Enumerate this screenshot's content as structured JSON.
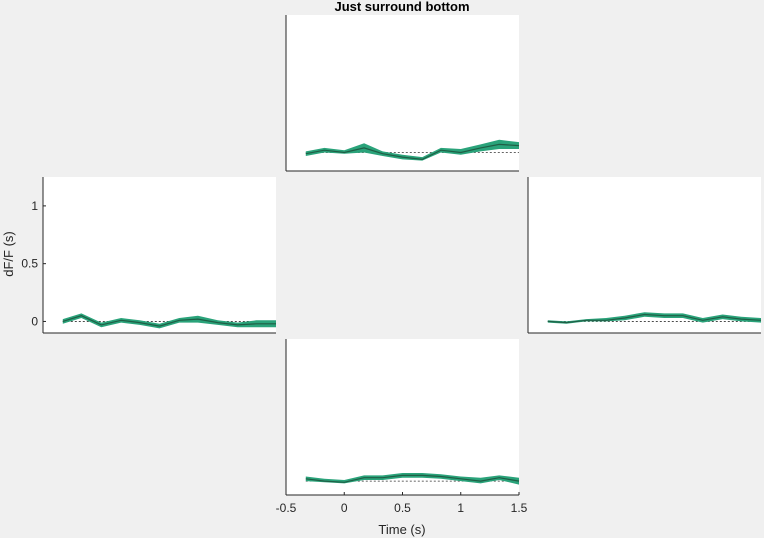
{
  "figure": {
    "title": "Just surround bottom",
    "xlabel": "Time (s)",
    "ylabel": "dF/F (s)"
  },
  "colors": {
    "background": "#f0f0f0",
    "axes_bg": "#ffffff",
    "band": "#2aa37a",
    "mean_line": "#1f5e45",
    "baseline": "#333333",
    "axis": "#262626"
  },
  "chart_data": [
    {
      "panel": "top",
      "type": "line",
      "xlim": [
        -0.5,
        1.5
      ],
      "ylim": [
        -0.1,
        1.25
      ],
      "x": [
        -0.33,
        -0.17,
        0,
        0.17,
        0.33,
        0.5,
        0.67,
        0.83,
        1,
        1.17,
        1.33,
        1.5
      ],
      "series": [
        {
          "mean": [
            0.05,
            0.08,
            0.06,
            0.1,
            0.05,
            0.02,
            0.0,
            0.08,
            0.06,
            0.1,
            0.13,
            0.12
          ],
          "lower": [
            0.03,
            0.06,
            0.05,
            0.06,
            0.03,
            0.0,
            -0.01,
            0.06,
            0.04,
            0.07,
            0.09,
            0.09
          ],
          "upper": [
            0.07,
            0.1,
            0.08,
            0.14,
            0.07,
            0.04,
            0.02,
            0.1,
            0.09,
            0.13,
            0.17,
            0.15
          ]
        }
      ],
      "baseline": 0.06,
      "title": "Just surround bottom",
      "xlabel": "",
      "ylabel": "",
      "show_x_ticks": false,
      "show_y_ticks": false
    },
    {
      "panel": "left",
      "type": "line",
      "xlim": [
        -0.5,
        1.5
      ],
      "ylim": [
        -0.1,
        1.25
      ],
      "yticks": [
        0,
        0.5,
        1
      ],
      "ytick_labels": [
        "0",
        "0.5",
        "1"
      ],
      "x": [
        -0.33,
        -0.17,
        0,
        0.17,
        0.33,
        0.5,
        0.67,
        0.83,
        1,
        1.17,
        1.33,
        1.5
      ],
      "series": [
        {
          "mean": [
            0.0,
            0.05,
            -0.03,
            0.01,
            -0.01,
            -0.04,
            0.01,
            0.02,
            -0.01,
            -0.03,
            -0.02,
            -0.02
          ],
          "lower": [
            -0.02,
            0.03,
            -0.05,
            -0.01,
            -0.03,
            -0.06,
            -0.01,
            -0.01,
            -0.03,
            -0.05,
            -0.05,
            -0.05
          ],
          "upper": [
            0.02,
            0.07,
            -0.01,
            0.03,
            0.01,
            -0.02,
            0.03,
            0.05,
            0.01,
            -0.01,
            0.01,
            0.01
          ]
        }
      ],
      "baseline": 0,
      "title": "",
      "xlabel": "",
      "ylabel": "dF/F (s)",
      "show_x_ticks": false,
      "show_y_ticks": true
    },
    {
      "panel": "right",
      "type": "line",
      "xlim": [
        -0.5,
        1.5
      ],
      "ylim": [
        -0.1,
        1.25
      ],
      "x": [
        -0.33,
        -0.17,
        0,
        0.17,
        0.33,
        0.5,
        0.67,
        0.83,
        1,
        1.17,
        1.33,
        1.5
      ],
      "series": [
        {
          "mean": [
            0.0,
            -0.01,
            0.01,
            0.01,
            0.03,
            0.06,
            0.05,
            0.05,
            0.01,
            0.04,
            0.02,
            0.01
          ],
          "lower": [
            -0.01,
            -0.02,
            0.0,
            0.0,
            0.01,
            0.04,
            0.03,
            0.03,
            -0.01,
            0.02,
            0.0,
            -0.01
          ],
          "upper": [
            0.01,
            0.0,
            0.02,
            0.03,
            0.05,
            0.08,
            0.07,
            0.07,
            0.03,
            0.06,
            0.04,
            0.03
          ]
        }
      ],
      "baseline": 0,
      "title": "",
      "xlabel": "",
      "ylabel": "",
      "show_x_ticks": false,
      "show_y_ticks": false
    },
    {
      "panel": "bottom",
      "type": "line",
      "xlim": [
        -0.5,
        1.5
      ],
      "ylim": [
        -0.1,
        1.25
      ],
      "xticks": [
        -0.5,
        0,
        0.5,
        1,
        1.5
      ],
      "xtick_labels": [
        "-0.5",
        "0",
        "0.5",
        "1",
        "1.5"
      ],
      "x": [
        -0.33,
        -0.17,
        0,
        0.17,
        0.33,
        0.5,
        0.67,
        0.83,
        1,
        1.17,
        1.33,
        1.5
      ],
      "series": [
        {
          "mean": [
            0.04,
            0.02,
            0.01,
            0.05,
            0.05,
            0.07,
            0.07,
            0.06,
            0.04,
            0.02,
            0.05,
            0.02
          ],
          "lower": [
            0.02,
            0.01,
            0.0,
            0.03,
            0.03,
            0.05,
            0.05,
            0.04,
            0.02,
            0.0,
            0.03,
            -0.01
          ],
          "upper": [
            0.06,
            0.04,
            0.03,
            0.07,
            0.07,
            0.09,
            0.09,
            0.08,
            0.06,
            0.05,
            0.07,
            0.05
          ]
        }
      ],
      "baseline": 0.02,
      "title": "",
      "xlabel": "Time (s)",
      "ylabel": "",
      "show_x_ticks": true,
      "show_y_ticks": false
    }
  ]
}
